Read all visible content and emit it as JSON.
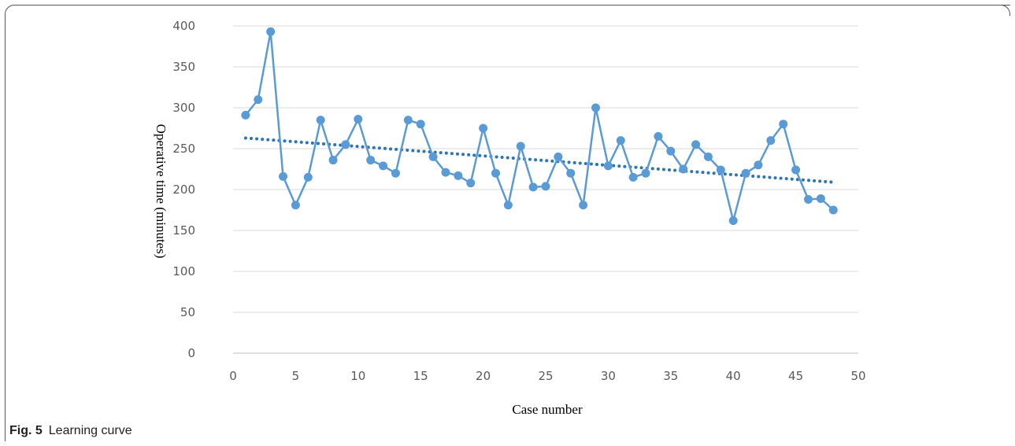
{
  "caption": {
    "figure_label": "Fig. 5",
    "text": "Learning curve"
  },
  "chart_data": {
    "type": "line",
    "xlabel": "Case number",
    "ylabel": "Operative time (minutes)",
    "xlim": [
      0,
      50
    ],
    "ylim": [
      0,
      400
    ],
    "xticks": [
      0,
      5,
      10,
      15,
      20,
      25,
      30,
      35,
      40,
      45,
      50
    ],
    "yticks": [
      0,
      50,
      100,
      150,
      200,
      250,
      300,
      350,
      400
    ],
    "grid": "horizontal",
    "legend": "none",
    "series": [
      {
        "color": "#5b9bd5",
        "x": [
          1,
          2,
          3,
          4,
          5,
          6,
          7,
          8,
          9,
          10,
          11,
          12,
          13,
          14,
          15,
          16,
          17,
          18,
          19,
          20,
          21,
          22,
          23,
          24,
          25,
          26,
          27,
          28,
          29,
          30,
          31,
          32,
          33,
          34,
          35,
          36,
          37,
          38,
          39,
          40,
          41,
          42,
          43,
          44,
          45,
          46,
          47,
          48
        ],
        "y": [
          291,
          310,
          393,
          216,
          181,
          215,
          285,
          236,
          255,
          286,
          236,
          229,
          220,
          285,
          280,
          240,
          221,
          217,
          208,
          275,
          220,
          181,
          253,
          203,
          204,
          240,
          220,
          181,
          300,
          229,
          260,
          215,
          220,
          265,
          247,
          225,
          255,
          240,
          224,
          162,
          220,
          230,
          260,
          280,
          224,
          188,
          189,
          175
        ]
      }
    ],
    "trendline": {
      "type": "linear",
      "style": "dotted",
      "color": "#2e75b6",
      "x": [
        1,
        48
      ],
      "y": [
        263,
        209
      ]
    }
  }
}
